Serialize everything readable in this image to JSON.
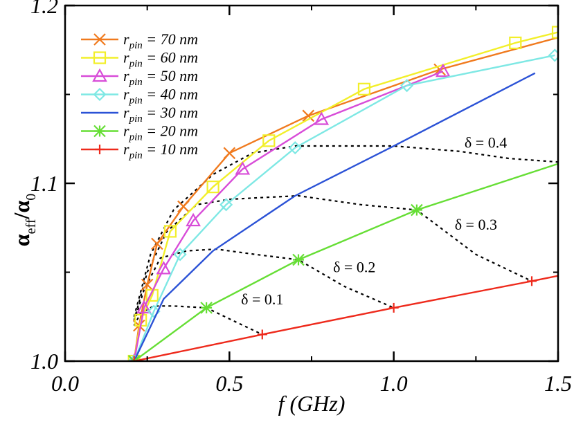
{
  "chart_data": {
    "type": "line",
    "xlabel": "f (GHz)",
    "ylabel": "α_eff/α_0",
    "xlim": [
      0.0,
      1.5
    ],
    "ylim": [
      1.0,
      1.2
    ],
    "x_ticks": [
      "0.0",
      "0.5",
      "1.0",
      "1.5"
    ],
    "y_ticks": [
      "1.0",
      "1.1",
      "1.2"
    ],
    "series": [
      {
        "name": "r_pin = 70 nm",
        "r": "70",
        "color": "#f07a1e",
        "marker": "x",
        "x": [
          0.21,
          0.225,
          0.25,
          0.28,
          0.36,
          0.5,
          0.74,
          1.14,
          1.5
        ],
        "y": [
          1.0,
          1.02,
          1.043,
          1.066,
          1.087,
          1.117,
          1.138,
          1.164,
          1.182
        ]
      },
      {
        "name": "r_pin = 60 nm",
        "r": "60",
        "color": "#f2ef2a",
        "marker": "square",
        "x": [
          0.21,
          0.23,
          0.265,
          0.32,
          0.45,
          0.62,
          0.91,
          1.37,
          1.5
        ],
        "y": [
          1.0,
          1.023,
          1.037,
          1.073,
          1.098,
          1.124,
          1.153,
          1.179,
          1.185
        ]
      },
      {
        "name": "r_pin = 50 nm",
        "r": "50",
        "color": "#d84cd8",
        "marker": "triangle",
        "x": [
          0.21,
          0.24,
          0.3,
          0.39,
          0.54,
          0.78,
          1.15
        ],
        "y": [
          1.0,
          1.03,
          1.052,
          1.079,
          1.108,
          1.136,
          1.163
        ]
      },
      {
        "name": "r_pin = 40 nm",
        "r": "40",
        "color": "#7ee8e4",
        "marker": "diamond",
        "x": [
          0.21,
          0.27,
          0.35,
          0.49,
          0.7,
          1.04,
          1.49
        ],
        "y": [
          1.0,
          1.028,
          1.06,
          1.088,
          1.12,
          1.155,
          1.172
        ]
      },
      {
        "name": "r_pin = 30 nm",
        "r": "30",
        "color": "#2b52d6",
        "marker": "none",
        "x": [
          0.21,
          0.3,
          0.45,
          0.7,
          1.0,
          1.43
        ],
        "y": [
          1.0,
          1.035,
          1.062,
          1.093,
          1.121,
          1.162
        ]
      },
      {
        "name": "r_pin = 20 nm",
        "r": "20",
        "color": "#66de35",
        "marker": "asterisk",
        "x": [
          0.21,
          0.43,
          0.71,
          1.07,
          1.5
        ],
        "y": [
          1.0,
          1.03,
          1.057,
          1.085,
          1.111
        ]
      },
      {
        "name": "r_pin = 10 nm",
        "r": "10",
        "color": "#ee2a1c",
        "marker": "plus",
        "x": [
          0.21,
          0.6,
          1.0,
          1.42,
          1.5
        ],
        "y": [
          1.0,
          1.015,
          1.03,
          1.045,
          1.048
        ]
      }
    ],
    "delta_curves": [
      {
        "label": "δ = 0.1",
        "x": [
          0.21,
          0.23,
          0.27,
          0.33,
          0.43,
          0.52,
          0.6
        ],
        "y": [
          1.02,
          1.027,
          1.031,
          1.031,
          1.03,
          1.022,
          1.015
        ]
      },
      {
        "label": "δ = 0.2",
        "x": [
          0.21,
          0.24,
          0.29,
          0.37,
          0.46,
          0.58,
          0.71,
          0.85,
          1.0
        ],
        "y": [
          1.022,
          1.04,
          1.058,
          1.062,
          1.063,
          1.06,
          1.057,
          1.042,
          1.03
        ]
      },
      {
        "label": "δ = 0.3",
        "x": [
          0.21,
          0.25,
          0.31,
          0.4,
          0.5,
          0.6,
          0.71,
          0.9,
          1.07,
          1.25,
          1.42
        ],
        "y": [
          1.023,
          1.05,
          1.073,
          1.088,
          1.091,
          1.092,
          1.093,
          1.088,
          1.085,
          1.06,
          1.045
        ]
      },
      {
        "label": "δ = 0.4",
        "x": [
          0.21,
          0.26,
          0.33,
          0.45,
          0.57,
          0.7,
          0.85,
          1.0,
          1.2,
          1.35,
          1.5
        ],
        "y": [
          1.025,
          1.06,
          1.085,
          1.105,
          1.117,
          1.121,
          1.121,
          1.121,
          1.118,
          1.114,
          1.112
        ]
      }
    ]
  }
}
